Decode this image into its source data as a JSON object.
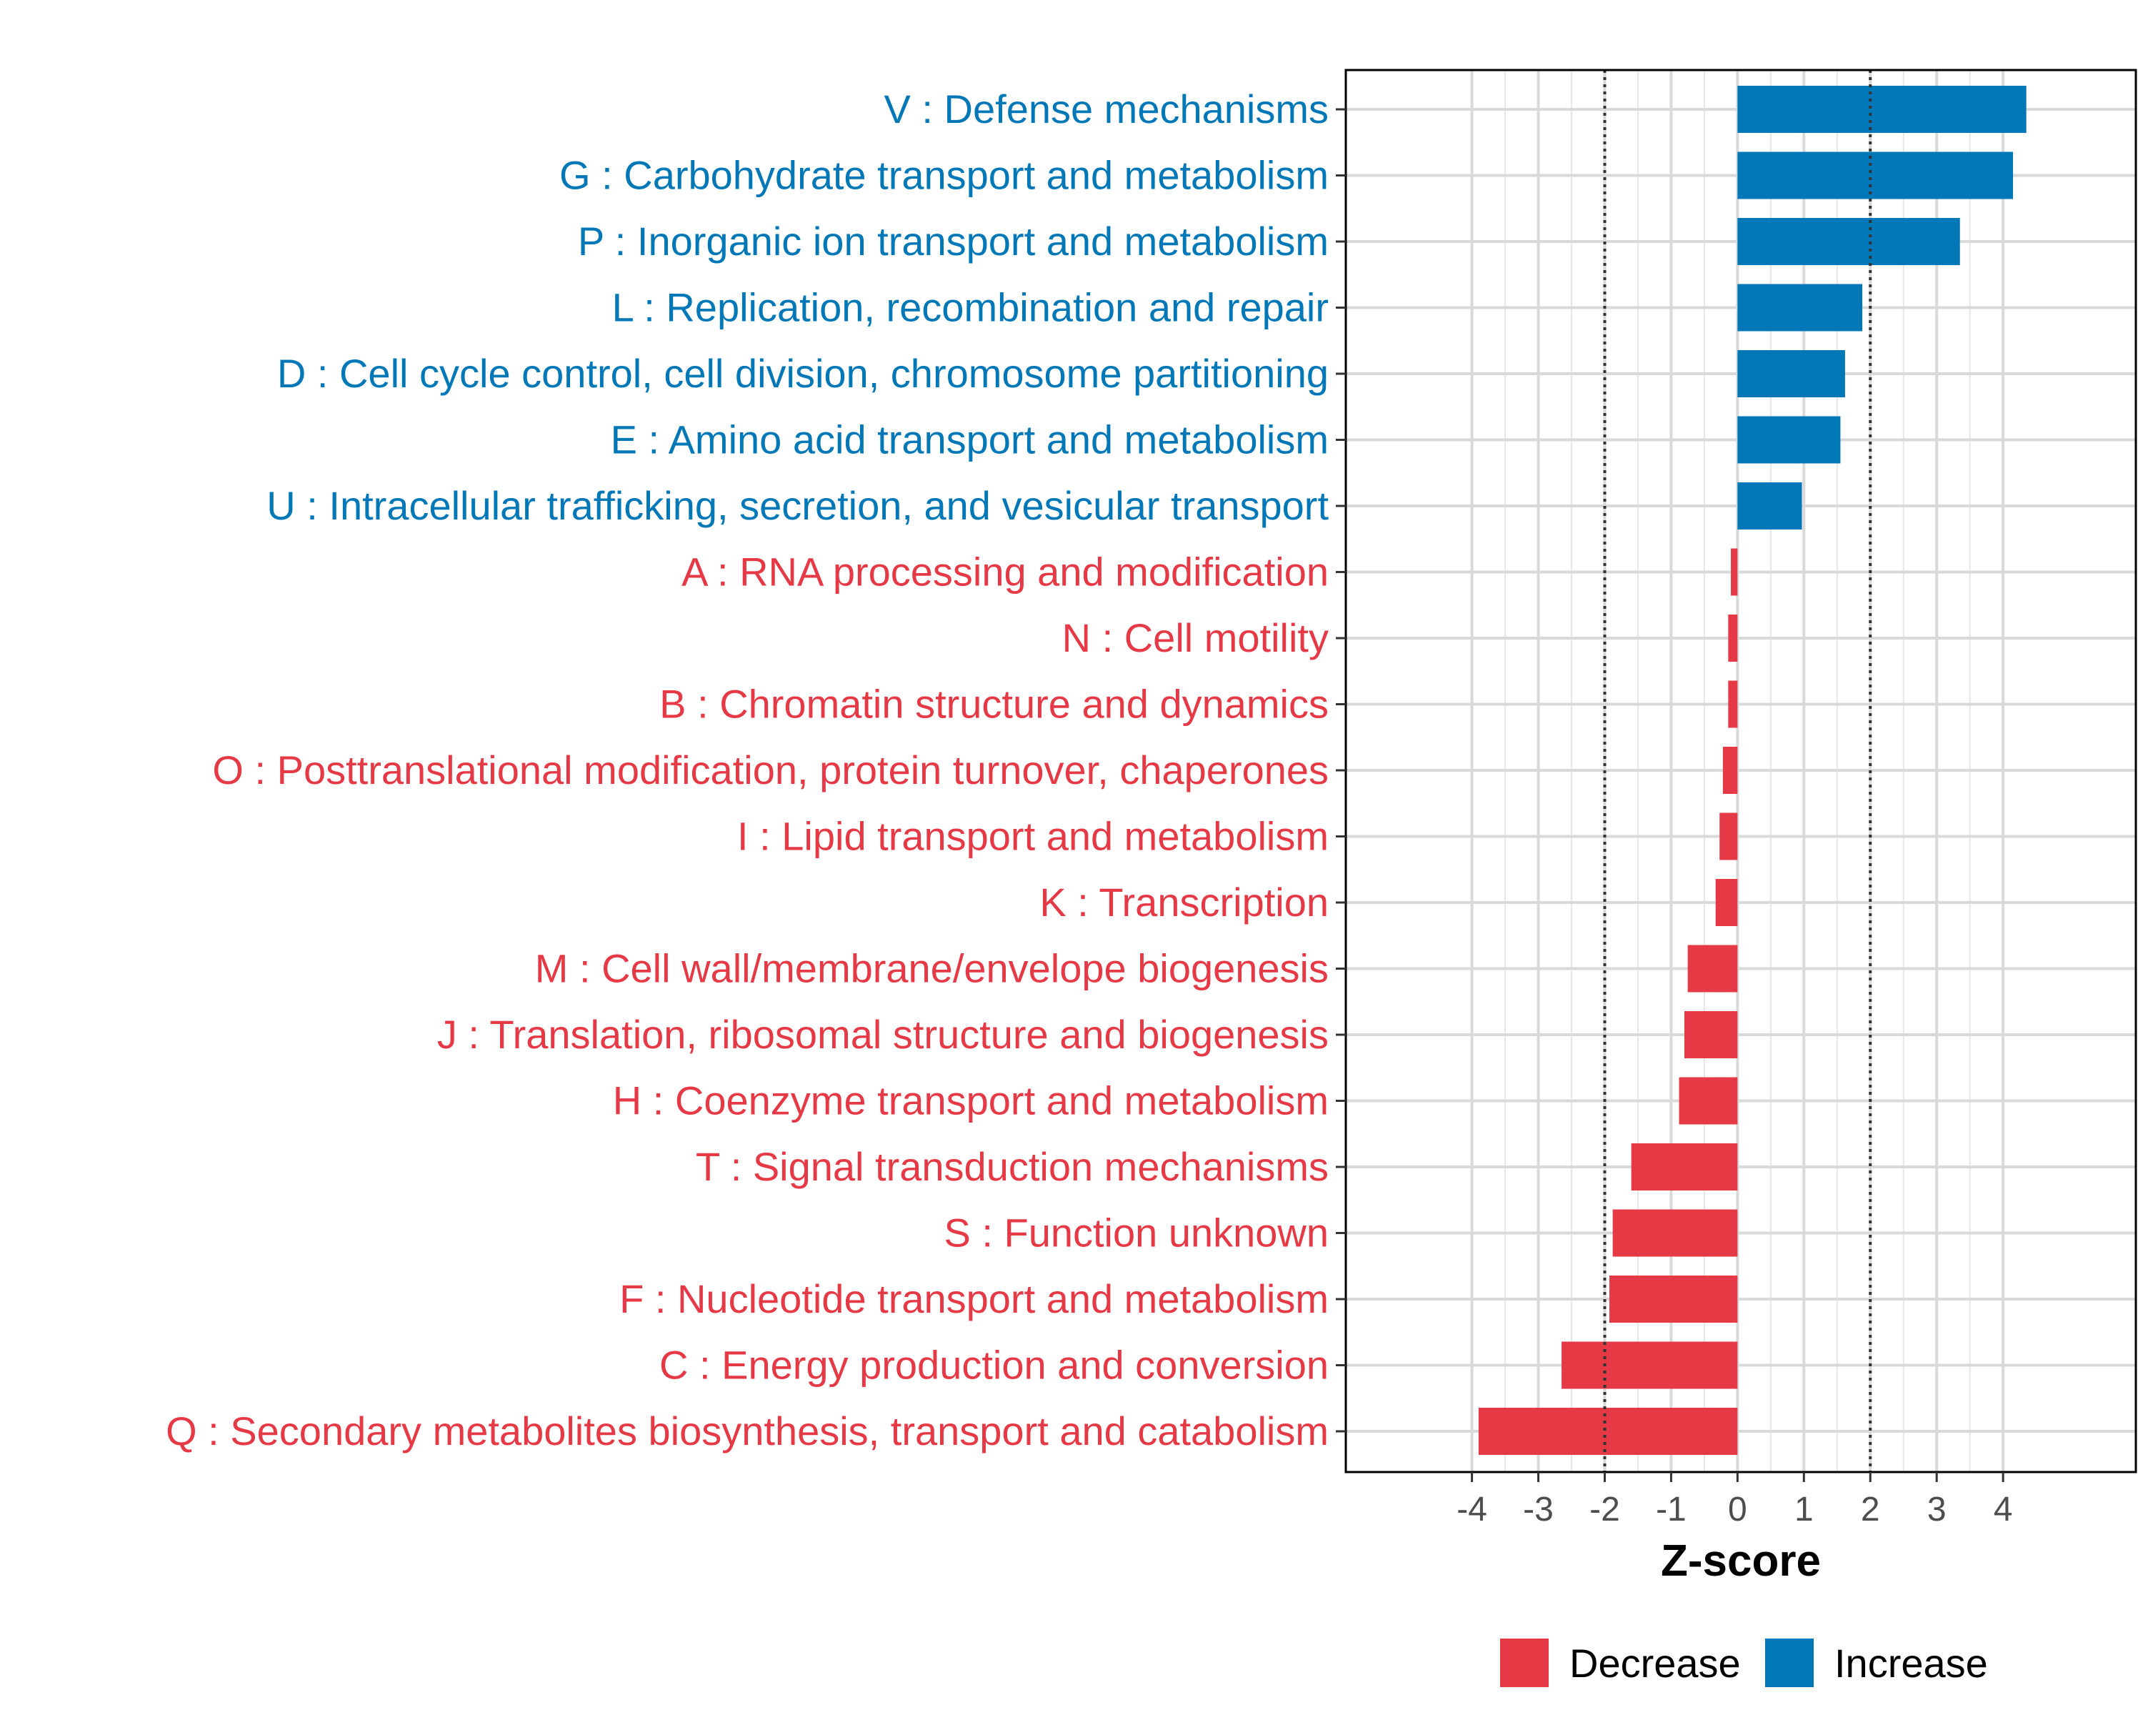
{
  "chart_data": {
    "type": "bar",
    "orientation": "horizontal",
    "xlabel": "Z-score",
    "xlim": [
      -5.9,
      6.0
    ],
    "xticks": [
      -4,
      -3,
      -2,
      -1,
      0,
      1,
      2,
      3,
      4
    ],
    "tick_labels": [
      "-4",
      "-3",
      "-2",
      "-1",
      "0",
      "1",
      "2",
      "3",
      "4"
    ],
    "reference_lines": [
      -2,
      2
    ],
    "grid": true,
    "categories": [
      "V : Defense mechanisms",
      "G : Carbohydrate transport and metabolism",
      "P : Inorganic ion transport and metabolism",
      "L : Replication, recombination and repair",
      "D : Cell cycle control, cell division, chromosome partitioning",
      "E : Amino acid transport and metabolism",
      "U : Intracellular trafficking, secretion, and vesicular transport",
      "A : RNA processing and modification",
      "N : Cell motility",
      "B : Chromatin structure and dynamics",
      "O : Posttranslational modification, protein turnover, chaperones",
      "I : Lipid transport and metabolism",
      "K : Transcription",
      "M : Cell wall/membrane/envelope biogenesis",
      "J : Translation, ribosomal structure and biogenesis",
      "H : Coenzyme transport and metabolism",
      "T : Signal transduction mechanisms",
      "S : Function unknown",
      "F : Nucleotide transport and metabolism",
      "C : Energy production and conversion",
      "Q : Secondary metabolites biosynthesis, transport and catabolism"
    ],
    "values": [
      4.35,
      4.15,
      3.35,
      1.88,
      1.62,
      1.55,
      0.97,
      -0.1,
      -0.14,
      -0.14,
      -0.22,
      -0.27,
      -0.33,
      -0.75,
      -0.8,
      -0.88,
      -1.6,
      -1.88,
      -1.93,
      -2.65,
      -3.9
    ],
    "legend": {
      "position": "bottom",
      "entries": [
        {
          "name": "Decrease",
          "color": "#e63946"
        },
        {
          "name": "Increase",
          "color": "#0077b6"
        }
      ]
    },
    "colors": {
      "increase": "#0077b6",
      "decrease": "#e63946"
    }
  }
}
